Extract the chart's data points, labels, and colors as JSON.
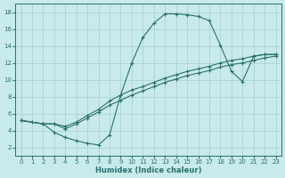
{
  "xlabel": "Humidex (Indice chaleur)",
  "bg_color": "#c8eaea",
  "grid_color": "#a8cccc",
  "line_color": "#2a7070",
  "xlim": [
    -0.5,
    23.5
  ],
  "ylim": [
    1,
    19
  ],
  "xticks": [
    0,
    1,
    2,
    3,
    4,
    5,
    6,
    7,
    8,
    9,
    10,
    11,
    12,
    13,
    14,
    15,
    16,
    17,
    18,
    19,
    20,
    21,
    22,
    23
  ],
  "yticks": [
    2,
    4,
    6,
    8,
    10,
    12,
    14,
    16,
    18
  ],
  "series1_x": [
    0,
    1,
    2,
    3,
    4,
    5,
    6,
    7,
    8,
    9,
    10,
    11,
    12,
    13,
    14,
    15,
    16,
    17,
    18,
    19,
    20,
    21,
    22,
    23
  ],
  "series1_y": [
    5.2,
    5.0,
    4.8,
    3.8,
    3.2,
    2.8,
    2.5,
    2.3,
    3.5,
    8.2,
    12.0,
    15.0,
    16.7,
    17.8,
    17.8,
    17.7,
    17.5,
    17.0,
    14.1,
    11.0,
    9.8,
    12.8,
    13.0,
    13.0
  ],
  "series2_x": [
    0,
    2,
    3,
    4,
    5,
    6,
    7,
    8,
    9,
    10,
    11,
    12,
    13,
    14,
    15,
    16,
    17,
    18,
    19,
    20,
    21,
    22,
    23
  ],
  "series2_y": [
    5.2,
    4.8,
    4.8,
    4.5,
    5.0,
    5.8,
    6.5,
    7.5,
    8.2,
    8.8,
    9.2,
    9.7,
    10.2,
    10.6,
    11.0,
    11.3,
    11.6,
    12.0,
    12.3,
    12.5,
    12.8,
    13.0,
    13.0
  ],
  "series3_x": [
    0,
    2,
    3,
    4,
    5,
    6,
    7,
    8,
    9,
    10,
    11,
    12,
    13,
    14,
    15,
    16,
    17,
    18,
    19,
    20,
    21,
    22,
    23
  ],
  "series3_y": [
    5.2,
    4.8,
    4.8,
    4.2,
    4.8,
    5.5,
    6.2,
    7.0,
    7.6,
    8.2,
    8.7,
    9.2,
    9.7,
    10.1,
    10.5,
    10.8,
    11.1,
    11.5,
    11.8,
    12.0,
    12.3,
    12.6,
    12.8
  ]
}
